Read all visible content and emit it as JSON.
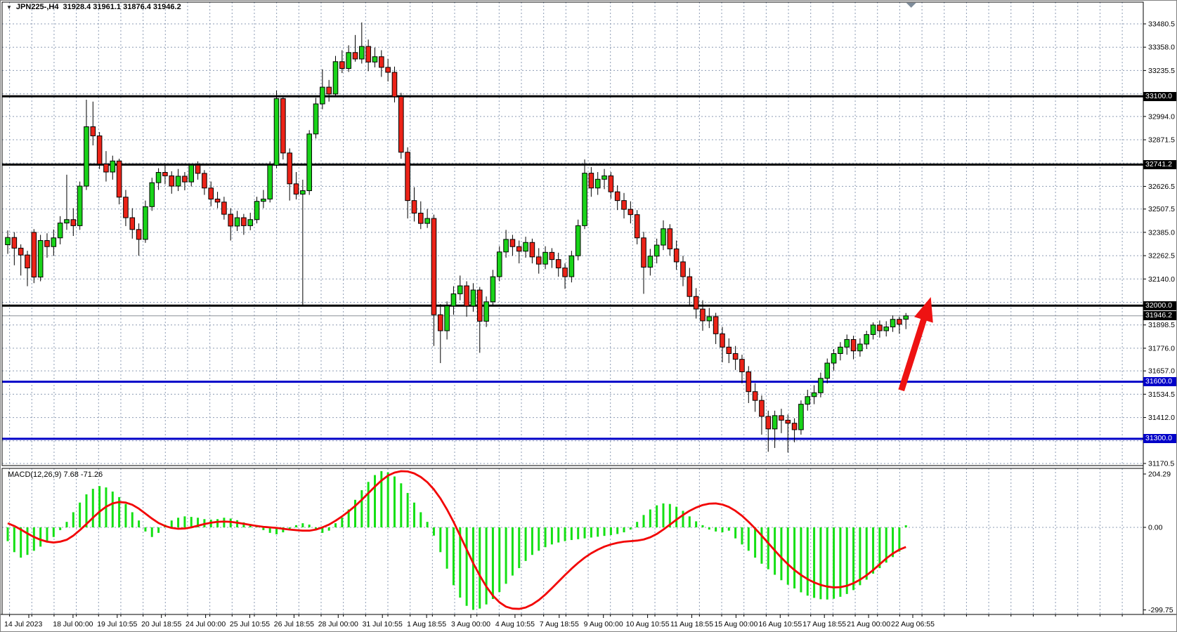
{
  "window": {
    "symbol_title": "JPN225-,H4",
    "ohlc_title": "31928.4 31961.1 31876.4 31946.2",
    "dropdown_glyph": "▼"
  },
  "colors": {
    "bull": "#19d319",
    "bear": "#ec2318",
    "candle_border": "#000000",
    "grid": "#8d9cb4",
    "black_level": "#000000",
    "blue_level": "#0202c8",
    "current_line": "#8a9097",
    "hist_green": "#14e014",
    "signal_red": "#f20505",
    "arrow_red": "#ee1212",
    "axis_line": "#000000",
    "shift_marker": "#7e8c9a"
  },
  "chart_data": {
    "type": "candlestick",
    "symbol": "JPN225-",
    "timeframe": "H4",
    "current_bar": {
      "open": 31928.4,
      "high": 31961.1,
      "low": 31876.4,
      "close": 31946.2
    },
    "price_panel": {
      "levels": [
        {
          "label": "33100.0",
          "price": 33100.0,
          "style": "black"
        },
        {
          "label": "32741.2",
          "price": 32741.2,
          "style": "black"
        },
        {
          "label": "32000.0",
          "price": 32000.0,
          "style": "black"
        },
        {
          "label": "31946.2",
          "price": 31946.2,
          "style": "current"
        },
        {
          "label": "31600.0",
          "price": 31600.0,
          "style": "blue"
        },
        {
          "label": "31300.0",
          "price": 31300.0,
          "style": "blue"
        }
      ],
      "axis_labels": [
        {
          "text": "33480.5",
          "price": 33480.5
        },
        {
          "text": "33358.0",
          "price": 33358.0
        },
        {
          "text": "33235.5",
          "price": 33235.5
        },
        {
          "text": "32994.0",
          "price": 32994.0
        },
        {
          "text": "32871.5",
          "price": 32871.5
        },
        {
          "text": "32626.5",
          "price": 32626.5
        },
        {
          "text": "32507.5",
          "price": 32507.5
        },
        {
          "text": "32385.0",
          "price": 32385.0
        },
        {
          "text": "32262.5",
          "price": 32262.5
        },
        {
          "text": "32140.0",
          "price": 32140.0
        },
        {
          "text": "31898.5",
          "price": 31898.5
        },
        {
          "text": "31776.0",
          "price": 31776.0
        },
        {
          "text": "31657.0",
          "price": 31657.0
        },
        {
          "text": "31534.5",
          "price": 31534.5
        },
        {
          "text": "31412.0",
          "price": 31412.0
        },
        {
          "text": "31170.5",
          "price": 31170.5
        }
      ],
      "grid_prices": [
        33480.5,
        33358.0,
        33235.5,
        33113.0,
        32994.0,
        32871.5,
        32749.0,
        32626.5,
        32507.5,
        32385.0,
        32262.5,
        32140.0,
        32017.5,
        31898.5,
        31776.0,
        31657.0,
        31534.5,
        31412.0,
        31289.5,
        31170.5
      ],
      "candles": [
        [
          32320,
          32395,
          32272,
          32358
        ],
        [
          32358,
          32386,
          32212,
          32302
        ],
        [
          32302,
          32322,
          32158,
          32266
        ],
        [
          32266,
          32288,
          32102,
          32198
        ],
        [
          32385,
          32402,
          32118,
          32150
        ],
        [
          32150,
          32372,
          32128,
          32342
        ],
        [
          32342,
          32380,
          32252,
          32310
        ],
        [
          32310,
          32400,
          32262,
          32356
        ],
        [
          32356,
          32470,
          32322,
          32434
        ],
        [
          32434,
          32688,
          32398,
          32452
        ],
        [
          32452,
          32512,
          32366,
          32420
        ],
        [
          32420,
          32652,
          32398,
          32628
        ],
        [
          32628,
          33082,
          32608,
          32940
        ],
        [
          32940,
          33072,
          32842,
          32892
        ],
        [
          32892,
          32912,
          32718,
          32744
        ],
        [
          32744,
          32812,
          32652,
          32702
        ],
        [
          32702,
          32788,
          32662,
          32760
        ],
        [
          32760,
          32772,
          32532,
          32570
        ],
        [
          32570,
          32608,
          32418,
          32462
        ],
        [
          32462,
          32512,
          32352,
          32400
        ],
        [
          32400,
          32432,
          32262,
          32348
        ],
        [
          32348,
          32552,
          32330,
          32520
        ],
        [
          32520,
          32672,
          32498,
          32646
        ],
        [
          32646,
          32722,
          32608,
          32700
        ],
        [
          32700,
          32748,
          32638,
          32682
        ],
        [
          32682,
          32706,
          32588,
          32628
        ],
        [
          32628,
          32718,
          32602,
          32680
        ],
        [
          32680,
          32702,
          32606,
          32650
        ],
        [
          32650,
          32742,
          32626,
          32738
        ],
        [
          32738,
          32758,
          32662,
          32695
        ],
        [
          32695,
          32712,
          32582,
          32618
        ],
        [
          32618,
          32652,
          32522,
          32560
        ],
        [
          32560,
          32598,
          32512,
          32544
        ],
        [
          32544,
          32572,
          32452,
          32480
        ],
        [
          32480,
          32512,
          32342,
          32418
        ],
        [
          32418,
          32498,
          32392,
          32462
        ],
        [
          32462,
          32482,
          32372,
          32420
        ],
        [
          32420,
          32488,
          32396,
          32452
        ],
        [
          32452,
          32572,
          32432,
          32548
        ],
        [
          32548,
          32608,
          32512,
          32560
        ],
        [
          32560,
          32758,
          32542,
          32738
        ],
        [
          32738,
          33130,
          32722,
          33088
        ],
        [
          33088,
          33102,
          32768,
          32802
        ],
        [
          32802,
          32826,
          32552,
          32640
        ],
        [
          32640,
          32702,
          32558,
          32586
        ],
        [
          32586,
          32662,
          32005,
          32604
        ],
        [
          32604,
          32922,
          32582,
          32902
        ],
        [
          32902,
          33092,
          32878,
          33060
        ],
        [
          33060,
          33242,
          33032,
          33148
        ],
        [
          33148,
          33186,
          33072,
          33112
        ],
        [
          33112,
          33312,
          33098,
          33282
        ],
        [
          33282,
          33342,
          33222,
          33246
        ],
        [
          33246,
          33368,
          33228,
          33330
        ],
        [
          33330,
          33422,
          33282,
          33296
        ],
        [
          33296,
          33488,
          33272,
          33362
        ],
        [
          33362,
          33398,
          33232,
          33280
        ],
        [
          33280,
          33356,
          33252,
          33308
        ],
        [
          33308,
          33342,
          33202,
          33252
        ],
        [
          33252,
          33296,
          33178,
          33226
        ],
        [
          33226,
          33256,
          33068,
          33098
        ],
        [
          33098,
          33118,
          32772,
          32806
        ],
        [
          32806,
          32832,
          32458,
          32552
        ],
        [
          32552,
          32622,
          32442,
          32486
        ],
        [
          32486,
          32548,
          32402,
          32432
        ],
        [
          32432,
          32508,
          32408,
          32458
        ],
        [
          32458,
          32478,
          31788,
          31952
        ],
        [
          31952,
          32008,
          31698,
          31868
        ],
        [
          31868,
          32022,
          31822,
          31998
        ],
        [
          31998,
          32102,
          31952,
          32062
        ],
        [
          32062,
          32158,
          32028,
          32104
        ],
        [
          32104,
          32128,
          31942,
          31998
        ],
        [
          31998,
          32118,
          31968,
          32082
        ],
        [
          32082,
          32098,
          31752,
          31918
        ],
        [
          31918,
          32048,
          31888,
          32020
        ],
        [
          32020,
          32188,
          31998,
          32152
        ],
        [
          32152,
          32312,
          32128,
          32282
        ],
        [
          32282,
          32398,
          32252,
          32348
        ],
        [
          32348,
          32372,
          32262,
          32310
        ],
        [
          32310,
          32342,
          32222,
          32286
        ],
        [
          32286,
          32362,
          32252,
          32332
        ],
        [
          32332,
          32352,
          32222,
          32256
        ],
        [
          32256,
          32302,
          32168,
          32218
        ],
        [
          32218,
          32312,
          32192,
          32280
        ],
        [
          32280,
          32302,
          32198,
          32242
        ],
        [
          32242,
          32278,
          32152,
          32198
        ],
        [
          32198,
          32222,
          32088,
          32152
        ],
        [
          32152,
          32288,
          32122,
          32262
        ],
        [
          32262,
          32452,
          32238,
          32420
        ],
        [
          32420,
          32768,
          32402,
          32696
        ],
        [
          32696,
          32728,
          32572,
          32618
        ],
        [
          32618,
          32702,
          32582,
          32664
        ],
        [
          32664,
          32718,
          32612,
          32682
        ],
        [
          32682,
          32702,
          32562,
          32598
        ],
        [
          32598,
          32632,
          32502,
          32552
        ],
        [
          32552,
          32592,
          32458,
          32506
        ],
        [
          32506,
          32548,
          32432,
          32478
        ],
        [
          32478,
          32502,
          32322,
          32356
        ],
        [
          32356,
          32388,
          32062,
          32202
        ],
        [
          32202,
          32298,
          32158,
          32260
        ],
        [
          32260,
          32352,
          32222,
          32318
        ],
        [
          32318,
          32448,
          32292,
          32404
        ],
        [
          32404,
          32428,
          32262,
          32298
        ],
        [
          32298,
          32342,
          32188,
          32230
        ],
        [
          32230,
          32262,
          32102,
          32152
        ],
        [
          32152,
          32198,
          32002,
          32048
        ],
        [
          32048,
          32092,
          31932,
          31982
        ],
        [
          31982,
          32028,
          31868,
          31920
        ],
        [
          31920,
          31988,
          31882,
          31942
        ],
        [
          31942,
          31962,
          31798,
          31852
        ],
        [
          31852,
          31888,
          31702,
          31782
        ],
        [
          31782,
          31828,
          31698,
          31748
        ],
        [
          31748,
          31788,
          31662,
          31718
        ],
        [
          31718,
          31742,
          31592,
          31652
        ],
        [
          31652,
          31682,
          31488,
          31548
        ],
        [
          31548,
          31592,
          31442,
          31502
        ],
        [
          31502,
          31528,
          31322,
          31418
        ],
        [
          31418,
          31448,
          31232,
          31352
        ],
        [
          31352,
          31448,
          31252,
          31422
        ],
        [
          31422,
          31458,
          31330,
          31398
        ],
        [
          31398,
          31428,
          31228,
          31382
        ],
        [
          31382,
          31408,
          31282,
          31348
        ],
        [
          31348,
          31502,
          31322,
          31482
        ],
        [
          31482,
          31558,
          31448,
          31522
        ],
        [
          31522,
          31582,
          31482,
          31542
        ],
        [
          31542,
          31648,
          31518,
          31618
        ],
        [
          31618,
          31722,
          31592,
          31698
        ],
        [
          31698,
          31772,
          31658,
          31748
        ],
        [
          31748,
          31808,
          31712,
          31782
        ],
        [
          31782,
          31848,
          31742,
          31822
        ],
        [
          31822,
          31842,
          31718,
          31762
        ],
        [
          31762,
          31828,
          31732,
          31798
        ],
        [
          31798,
          31868,
          31772,
          31848
        ],
        [
          31848,
          31912,
          31822,
          31898
        ],
        [
          31898,
          31922,
          31832,
          31868
        ],
        [
          31868,
          31918,
          31838,
          31888
        ],
        [
          31888,
          31948,
          31862,
          31928
        ],
        [
          31928,
          31942,
          31852,
          31902
        ],
        [
          31928.4,
          31961.1,
          31876.4,
          31946.2
        ]
      ]
    },
    "macd_panel": {
      "label": "MACD(12,26,9) 7.68 -71.26",
      "current_macd": 7.68,
      "current_signal": -71.26,
      "axis_labels": [
        {
          "text": "204.29",
          "value": 204.29
        },
        {
          "text": "0.00",
          "value": 0.0
        },
        {
          "text": "-299.75",
          "value": -299.75
        }
      ],
      "histogram": [
        -50,
        -90,
        -110,
        -100,
        -85,
        -70,
        -55,
        -35,
        -10,
        20,
        55,
        90,
        120,
        140,
        150,
        145,
        130,
        110,
        85,
        55,
        25,
        -15,
        -35,
        -20,
        10,
        25,
        35,
        40,
        38,
        35,
        30,
        28,
        30,
        35,
        32,
        26,
        18,
        12,
        8,
        -10,
        -20,
        -25,
        -18,
        -10,
        8,
        15,
        10,
        -5,
        -20,
        -12,
        15,
        35,
        65,
        100,
        135,
        165,
        190,
        204.29,
        200,
        185,
        160,
        125,
        90,
        55,
        20,
        -30,
        -90,
        -150,
        -210,
        -255,
        -285,
        -299.75,
        -295,
        -280,
        -260,
        -235,
        -205,
        -175,
        -148,
        -122,
        -100,
        -85,
        -72,
        -62,
        -55,
        -50,
        -46,
        -43,
        -40,
        -37,
        -34,
        -31,
        -28,
        -24,
        -18,
        -8,
        20,
        45,
        65,
        80,
        87,
        85,
        75,
        60,
        40,
        22,
        8,
        -8,
        -15,
        -18,
        -12,
        -40,
        -62,
        -85,
        -110,
        -132,
        -152,
        -172,
        -192,
        -208,
        -222,
        -236,
        -248,
        -256,
        -261,
        -262,
        -259,
        -252,
        -242,
        -228,
        -210,
        -190,
        -168,
        -148,
        -128,
        -108,
        -88,
        7.68
      ],
      "signal": [
        15,
        5,
        -8,
        -22,
        -35,
        -45,
        -52,
        -55,
        -52,
        -45,
        -30,
        -10,
        12,
        35,
        57,
        75,
        87,
        92,
        90,
        82,
        68,
        50,
        32,
        16,
        5,
        -2,
        -5,
        -4,
        0,
        6,
        12,
        17,
        20,
        21,
        20,
        17,
        13,
        9,
        5,
        2,
        0,
        -2,
        -5,
        -8,
        -10,
        -12,
        -12,
        -8,
        0,
        10,
        24,
        40,
        58,
        78,
        100,
        124,
        148,
        170,
        188,
        199,
        204,
        203,
        196,
        183,
        164,
        138,
        105,
        65,
        20,
        -30,
        -80,
        -130,
        -175,
        -215,
        -248,
        -272,
        -288,
        -295,
        -296,
        -291,
        -280,
        -264,
        -244,
        -221,
        -197,
        -173,
        -150,
        -129,
        -110,
        -94,
        -81,
        -70,
        -62,
        -56,
        -52,
        -50,
        -48,
        -44,
        -36,
        -24,
        -8,
        10,
        28,
        45,
        60,
        72,
        81,
        86,
        87,
        83,
        74,
        60,
        42,
        20,
        -4,
        -30,
        -57,
        -84,
        -110,
        -134,
        -155,
        -173,
        -188,
        -200,
        -209,
        -215,
        -218,
        -217,
        -212,
        -203,
        -190,
        -174,
        -155,
        -134,
        -113,
        -95,
        -81,
        -71.26
      ]
    },
    "time_axis": {
      "labels": [
        "14 Jul 2023",
        "18 Jul 00:00",
        "19 Jul 10:55",
        "20 Jul 18:55",
        "24 Jul 00:00",
        "25 Jul 10:55",
        "26 Jul 18:55",
        "28 Jul 00:00",
        "31 Jul 10:55",
        "1 Aug 18:55",
        "3 Aug 00:00",
        "4 Aug 10:55",
        "7 Aug 18:55",
        "9 Aug 00:00",
        "10 Aug 10:55",
        "11 Aug 18:55",
        "15 Aug 00:00",
        "16 Aug 10:55",
        "17 Aug 18:55",
        "21 Aug 00:00",
        "22 Aug 06:55"
      ]
    },
    "annotations": {
      "trend_arrow": {
        "from_index": 136.3,
        "from_price": 31555,
        "to_index": 140.8,
        "to_price": 32045
      },
      "shift_marker_index": 137.8
    }
  }
}
